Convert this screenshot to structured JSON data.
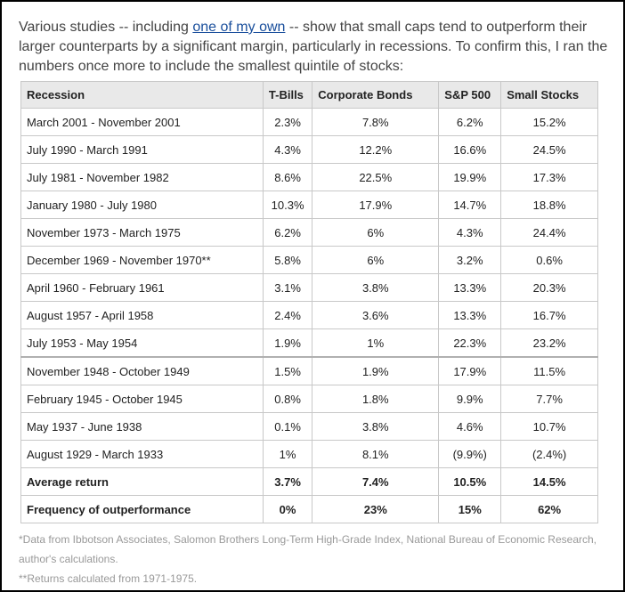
{
  "intro": {
    "before_link": "Various studies -- including ",
    "link_text": "one of my own",
    "after_link": " -- show that small caps tend to outperform their larger counterparts by a significant margin, particularly in recessions. To confirm this, I ran the numbers once more to include the smallest quintile of stocks:"
  },
  "table": {
    "headers": [
      "Recession",
      "T-Bills",
      "Corporate Bonds",
      "S&P 500",
      "Small Stocks"
    ],
    "rows": [
      [
        "March 2001 - November 2001",
        "2.3%",
        "7.8%",
        "6.2%",
        "15.2%"
      ],
      [
        "July 1990 - March 1991",
        "4.3%",
        "12.2%",
        "16.6%",
        "24.5%"
      ],
      [
        "July 1981 - November 1982",
        "8.6%",
        "22.5%",
        "19.9%",
        "17.3%"
      ],
      [
        "January 1980 - July 1980",
        "10.3%",
        "17.9%",
        "14.7%",
        "18.8%"
      ],
      [
        "November 1973 - March 1975",
        "6.2%",
        "6%",
        "4.3%",
        "24.4%"
      ],
      [
        "December 1969 - November 1970**",
        "5.8%",
        "6%",
        "3.2%",
        "0.6%"
      ],
      [
        "April 1960 - February 1961",
        "3.1%",
        "3.8%",
        "13.3%",
        "20.3%"
      ],
      [
        "August 1957 - April 1958",
        "2.4%",
        "3.6%",
        "13.3%",
        "16.7%"
      ],
      [
        "July 1953 - May 1954",
        "1.9%",
        "1%",
        "22.3%",
        "23.2%"
      ],
      [
        "November 1948 - October 1949",
        "1.5%",
        "1.9%",
        "17.9%",
        "11.5%"
      ],
      [
        "February 1945 - October 1945",
        "0.8%",
        "1.8%",
        "9.9%",
        "7.7%"
      ],
      [
        "May 1937 - June 1938",
        "0.1%",
        "3.8%",
        "4.6%",
        "10.7%"
      ],
      [
        "August 1929 - March 1933",
        "1%",
        "8.1%",
        "(9.9%)",
        "(2.4%)"
      ]
    ],
    "summary": [
      [
        "Average return",
        "3.7%",
        "7.4%",
        "10.5%",
        "14.5%"
      ],
      [
        "Frequency of outperformance",
        "0%",
        "23%",
        "15%",
        "62%"
      ]
    ]
  },
  "notes": {
    "line1": "*Data from Ibbotson Associates, Salomon Brothers Long-Term High-Grade Index, National Bureau of Economic Research, author's calculations.",
    "line2": "**Returns calculated from 1971-1975."
  }
}
